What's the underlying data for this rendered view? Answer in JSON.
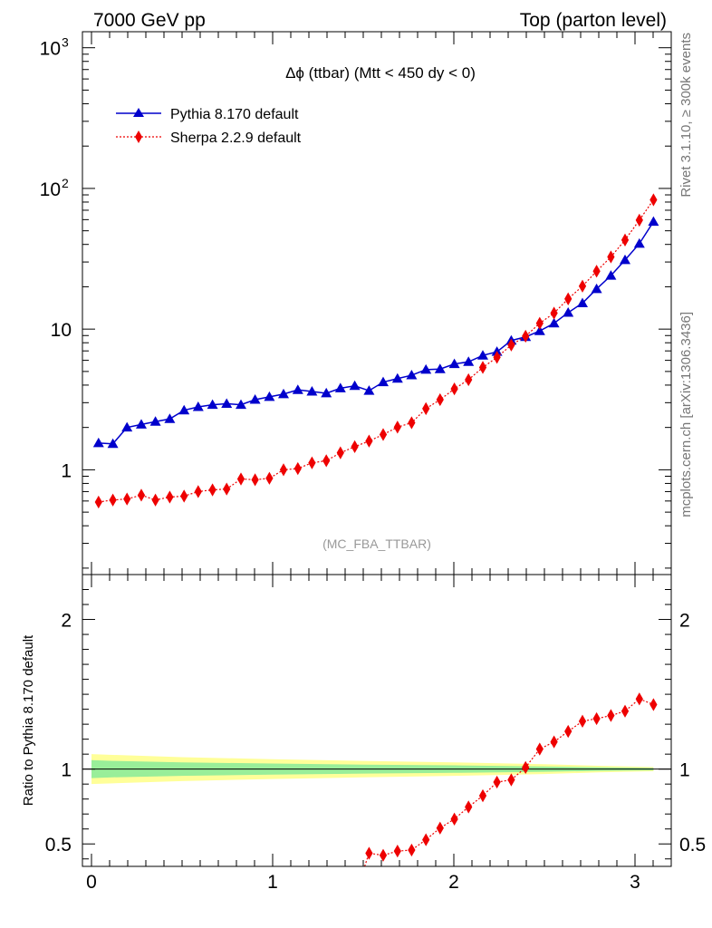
{
  "header": {
    "left": "7000 GeV pp",
    "right": "Top (parton level)"
  },
  "side_labels": {
    "rivet": "Rivet 3.1.10, ≥ 300k events",
    "mcplots": "mcplots.cern.ch [arXiv:1306.3436]"
  },
  "analysis_tag": "(MC_FBA_TTBAR)",
  "colors": {
    "pythia": "#0000cc",
    "sherpa": "#ee0000",
    "band_inner": "#99ee99",
    "band_outer": "#ffff99"
  },
  "chart_data": [
    {
      "type": "line",
      "panel": "main",
      "title": "Δϕ (ttbar) (Mtt < 450 dy < 0)",
      "yscale": "log",
      "ylim": [
        0.18,
        1300
      ],
      "xlim": [
        -0.05,
        3.2
      ],
      "yticks": [
        {
          "value": 1,
          "label": "1"
        },
        {
          "value": 10,
          "label": "10"
        },
        {
          "value": 100,
          "label": "10",
          "sup": "2"
        },
        {
          "value": 1000,
          "label": "10",
          "sup": "3"
        }
      ],
      "legend_position": "top-left",
      "x": [
        0.039,
        0.118,
        0.196,
        0.275,
        0.353,
        0.432,
        0.511,
        0.589,
        0.668,
        0.746,
        0.825,
        0.903,
        0.982,
        1.06,
        1.139,
        1.217,
        1.296,
        1.374,
        1.453,
        1.532,
        1.61,
        1.689,
        1.767,
        1.846,
        1.924,
        2.003,
        2.081,
        2.16,
        2.238,
        2.317,
        2.396,
        2.474,
        2.553,
        2.631,
        2.71,
        2.788,
        2.867,
        2.945,
        3.024,
        3.102
      ],
      "series": [
        {
          "name": "Pythia 8.170 default",
          "marker": "triangle",
          "line": "solid",
          "values": [
            1.55,
            1.53,
            2.0,
            2.1,
            2.2,
            2.3,
            2.65,
            2.8,
            2.9,
            2.95,
            2.9,
            3.15,
            3.3,
            3.45,
            3.7,
            3.6,
            3.5,
            3.8,
            3.95,
            3.65,
            4.2,
            4.45,
            4.7,
            5.15,
            5.2,
            5.65,
            5.85,
            6.5,
            6.9,
            8.3,
            8.8,
            9.7,
            11.0,
            13.1,
            15.3,
            19.3,
            24.0,
            31.0,
            40.5,
            58.0
          ]
        },
        {
          "name": "Sherpa 2.2.9 default",
          "marker": "diamond",
          "line": "dotted",
          "values": [
            0.59,
            0.61,
            0.62,
            0.66,
            0.61,
            0.64,
            0.65,
            0.7,
            0.72,
            0.73,
            0.86,
            0.85,
            0.87,
            1.0,
            1.02,
            1.12,
            1.16,
            1.32,
            1.46,
            1.6,
            1.78,
            2.01,
            2.16,
            2.72,
            3.15,
            3.76,
            4.37,
            5.34,
            6.3,
            7.7,
            8.9,
            11.0,
            13.0,
            16.4,
            20.2,
            25.8,
            32.6,
            43.0,
            59.5,
            83.0
          ]
        }
      ]
    },
    {
      "type": "line",
      "panel": "ratio",
      "ylabel": "Ratio to Pythia 8.170 default",
      "ylim": [
        0.35,
        2.3
      ],
      "xlim": [
        -0.05,
        3.2
      ],
      "xticks": [
        {
          "value": 0,
          "label": "0"
        },
        {
          "value": 1,
          "label": "1"
        },
        {
          "value": 2,
          "label": "2"
        },
        {
          "value": 3,
          "label": "3"
        }
      ],
      "yticks": [
        {
          "value": 0.5,
          "label": "0.5"
        },
        {
          "value": 1,
          "label": "1"
        },
        {
          "value": 2,
          "label": "2"
        }
      ],
      "x": [
        1.532,
        1.61,
        1.689,
        1.767,
        1.846,
        1.924,
        2.003,
        2.081,
        2.16,
        2.238,
        2.317,
        2.396,
        2.474,
        2.553,
        2.631,
        2.71,
        2.788,
        2.867,
        2.945,
        3.024,
        3.102
      ],
      "series": [
        {
          "name": "Sherpa 2.2.9 default",
          "marker": "diamond",
          "line": "dotted",
          "values": [
            0.438,
            0.424,
            0.452,
            0.459,
            0.528,
            0.606,
            0.666,
            0.747,
            0.822,
            0.913,
            0.928,
            1.011,
            1.134,
            1.182,
            1.252,
            1.32,
            1.337,
            1.358,
            1.387,
            1.469,
            1.431
          ]
        }
      ],
      "band": {
        "x": [
          0.0,
          0.118,
          0.5,
          1.0,
          1.5,
          2.0,
          2.5,
          2.8,
          3.102
        ],
        "inner_half_width": [
          0.06,
          0.055,
          0.045,
          0.037,
          0.03,
          0.025,
          0.018,
          0.012,
          0.008
        ],
        "outer_half_width": [
          0.1,
          0.095,
          0.08,
          0.066,
          0.055,
          0.045,
          0.033,
          0.022,
          0.014
        ]
      }
    }
  ]
}
